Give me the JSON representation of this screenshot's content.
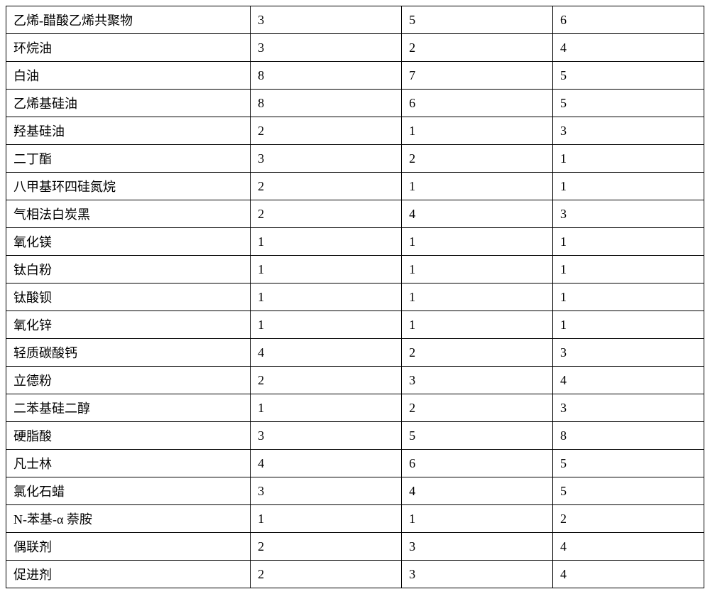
{
  "table": {
    "columns": [
      {
        "key": "label",
        "width": "35%",
        "align": "left"
      },
      {
        "key": "v1",
        "width": "21.66%",
        "align": "left"
      },
      {
        "key": "v2",
        "width": "21.66%",
        "align": "left"
      },
      {
        "key": "v3",
        "width": "21.66%",
        "align": "left"
      }
    ],
    "border_color": "#000000",
    "background_color": "#ffffff",
    "font_size": 18,
    "rows": [
      {
        "label": "乙烯-醋酸乙烯共聚物",
        "v1": "3",
        "v2": "5",
        "v3": "6"
      },
      {
        "label": "环烷油",
        "v1": "3",
        "v2": "2",
        "v3": "4"
      },
      {
        "label": "白油",
        "v1": "8",
        "v2": "7",
        "v3": "5"
      },
      {
        "label": "乙烯基硅油",
        "v1": "8",
        "v2": "6",
        "v3": "5"
      },
      {
        "label": "羟基硅油",
        "v1": "2",
        "v2": "1",
        "v3": "3"
      },
      {
        "label": "二丁酯",
        "v1": "3",
        "v2": "2",
        "v3": "1"
      },
      {
        "label": "八甲基环四硅氮烷",
        "v1": "2",
        "v2": "1",
        "v3": "1"
      },
      {
        "label": "气相法白炭黑",
        "v1": "2",
        "v2": "4",
        "v3": "3"
      },
      {
        "label": "氧化镁",
        "v1": "1",
        "v2": "1",
        "v3": "1"
      },
      {
        "label": "钛白粉",
        "v1": "1",
        "v2": "1",
        "v3": "1"
      },
      {
        "label": "钛酸钡",
        "v1": "1",
        "v2": "1",
        "v3": "1"
      },
      {
        "label": "氧化锌",
        "v1": "1",
        "v2": "1",
        "v3": "1"
      },
      {
        "label": "轻质碳酸钙",
        "v1": "4",
        "v2": "2",
        "v3": "3"
      },
      {
        "label": "立德粉",
        "v1": "2",
        "v2": "3",
        "v3": "4"
      },
      {
        "label": "二苯基硅二醇",
        "v1": "1",
        "v2": "2",
        "v3": "3"
      },
      {
        "label": "硬脂酸",
        "v1": "3",
        "v2": "5",
        "v3": "8"
      },
      {
        "label": "凡士林",
        "v1": "4",
        "v2": "6",
        "v3": "5"
      },
      {
        "label": "氯化石蜡",
        "v1": "3",
        "v2": "4",
        "v3": "5"
      },
      {
        "label": "N-苯基-α 萘胺",
        "v1": "1",
        "v2": "1",
        "v3": "2"
      },
      {
        "label": "偶联剂",
        "v1": "2",
        "v2": "3",
        "v3": "4"
      },
      {
        "label": "促进剂",
        "v1": "2",
        "v2": "3",
        "v3": "4"
      }
    ]
  }
}
